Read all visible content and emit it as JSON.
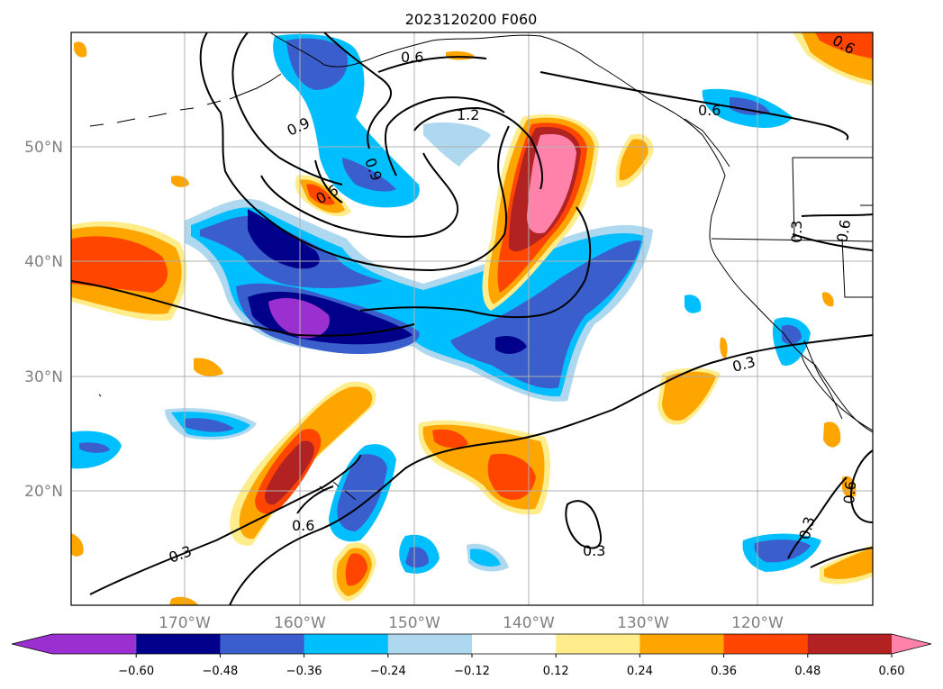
{
  "title": "2023120200 F060",
  "latitude_labels": [
    "50°N",
    "40°N",
    "30°N",
    "20°N"
  ],
  "longitude_labels": [
    "170°W",
    "160°W",
    "150°W",
    "140°W",
    "130°W",
    "120°W"
  ],
  "colorbar": {
    "ticks": [
      "−0.60",
      "−0.48",
      "−0.36",
      "−0.24",
      "−0.12",
      "0.12",
      "0.24",
      "0.36",
      "0.48",
      "0.60"
    ],
    "colors": [
      "#9b30d0",
      "#00008b",
      "#3a5fcd",
      "#00bfff",
      "#add8f0",
      "#ffffff",
      "#ffec8b",
      "#ffa500",
      "#ff4500",
      "#b22222",
      "#ff82ab"
    ]
  },
  "contour_labels": [
    "0.6",
    "0.9",
    "1.2",
    "0.6",
    "0.6",
    "0.9",
    "0.6",
    "0.3",
    "0.3",
    "0.6",
    "0.3",
    "0.3",
    "0.3",
    "0.6",
    "0.6"
  ],
  "colors": {
    "purple": "#9b30d0",
    "navy": "#00008b",
    "royal": "#3a5fcd",
    "sky": "#00bfff",
    "lightblue": "#add8f0",
    "yellow": "#ffec8b",
    "orange": "#ffa500",
    "redorange": "#ff4500",
    "firebrick": "#b22222",
    "pink": "#ff82ab"
  }
}
